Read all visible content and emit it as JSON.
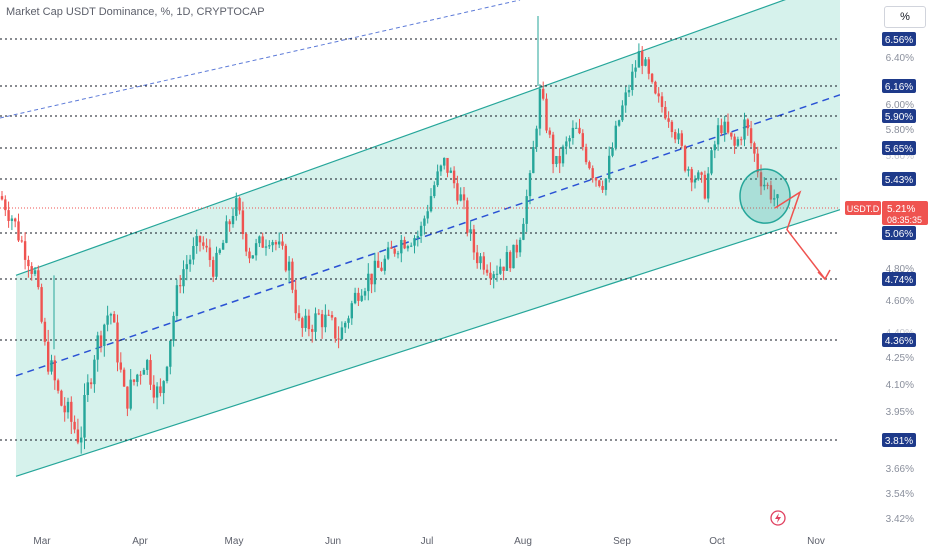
{
  "header": {
    "title": "Market Cap USDT Dominance, %, 1D, CRYPTOCAP",
    "unit_button": "%"
  },
  "colors": {
    "bull": "#26a69a",
    "bear": "#ef5350",
    "channel_fill": "#d6f2ec",
    "channel_line": "#26a69a",
    "midline": "#2a52d4",
    "level_line": "#131722",
    "label_bg": "#1e3a8a",
    "price_tag": "#ef5350",
    "arrow": "#ef5350"
  },
  "chart_data": {
    "type": "candlestick",
    "symbol": "USDT.D",
    "x_ticks": [
      "Mar",
      "Apr",
      "May",
      "Jun",
      "Jul",
      "Aug",
      "Sep",
      "Oct",
      "Nov"
    ],
    "y_axis_ticks": [
      "6.40%",
      "6.00%",
      "5.80%",
      "4.80%",
      "4.60%",
      "4.25%",
      "4.10%",
      "3.95%",
      "3.66%",
      "3.54%",
      "3.42%"
    ],
    "y_axis_ticks_faded": [
      "5.60%",
      "4.40%"
    ],
    "levels": [
      "6.56%",
      "6.16%",
      "5.90%",
      "5.65%",
      "5.43%",
      "5.06%",
      "4.74%",
      "4.36%",
      "3.81%"
    ],
    "current_price": {
      "symbol": "USDT.D",
      "value": "5.21%",
      "countdown": "08:35:35"
    },
    "channel": {
      "lower_start": 3.62,
      "lower_end": 5.2,
      "upper_start": 4.76,
      "upper_end": 7.2
    },
    "projection": [
      5.21,
      5.33,
      5.08,
      4.74
    ],
    "grid": false
  }
}
